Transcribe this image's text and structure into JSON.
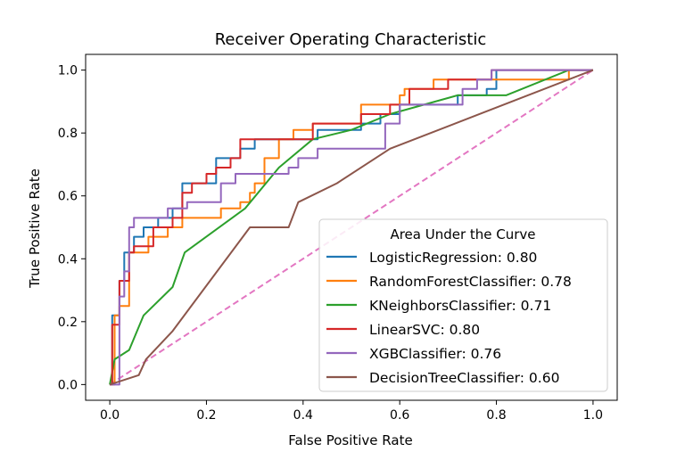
{
  "chart_data": {
    "type": "line",
    "title": "Receiver Operating Characteristic",
    "xlabel": "False Positive Rate",
    "ylabel": "True Positive Rate",
    "xlim": [
      -0.05,
      1.05
    ],
    "ylim": [
      -0.05,
      1.05
    ],
    "xticks": [
      0.0,
      0.2,
      0.4,
      0.6,
      0.8,
      1.0
    ],
    "xtick_labels": [
      "0.0",
      "0.2",
      "0.4",
      "0.6",
      "0.8",
      "1.0"
    ],
    "yticks": [
      0.0,
      0.2,
      0.4,
      0.6,
      0.8,
      1.0
    ],
    "ytick_labels": [
      "0.0",
      "0.2",
      "0.4",
      "0.6",
      "0.8",
      "1.0"
    ],
    "grid": false,
    "legend": {
      "title": "Area Under the Curve",
      "placement": "lower-right"
    },
    "diagonal": {
      "x": [
        0,
        1
      ],
      "y": [
        0,
        1
      ],
      "color": "#e377c2",
      "style": "dashed"
    },
    "series": [
      {
        "name": "LogisticRegression: 0.80",
        "color": "#1f77b4",
        "step": true,
        "x": [
          0,
          0.005,
          0.005,
          0.02,
          0.02,
          0.03,
          0.03,
          0.05,
          0.05,
          0.07,
          0.07,
          0.1,
          0.1,
          0.13,
          0.13,
          0.15,
          0.15,
          0.18,
          0.18,
          0.22,
          0.22,
          0.25,
          0.25,
          0.27,
          0.27,
          0.3,
          0.3,
          0.38,
          0.38,
          0.43,
          0.43,
          0.52,
          0.52,
          0.56,
          0.56,
          0.6,
          0.6,
          0.72,
          0.72,
          0.78,
          0.78,
          0.8,
          0.8,
          1.0
        ],
        "y": [
          0,
          0,
          0.22,
          0.22,
          0.33,
          0.33,
          0.42,
          0.42,
          0.47,
          0.47,
          0.5,
          0.5,
          0.53,
          0.53,
          0.56,
          0.56,
          0.64,
          0.64,
          0.64,
          0.64,
          0.72,
          0.72,
          0.72,
          0.72,
          0.75,
          0.75,
          0.78,
          0.78,
          0.78,
          0.78,
          0.81,
          0.81,
          0.83,
          0.83,
          0.86,
          0.86,
          0.89,
          0.89,
          0.92,
          0.92,
          0.94,
          0.94,
          1.0,
          1.0
        ]
      },
      {
        "name": "RandomForestClassifier: 0.78",
        "color": "#ff7f0e",
        "step": true,
        "x": [
          0,
          0.01,
          0.01,
          0.02,
          0.02,
          0.04,
          0.04,
          0.08,
          0.08,
          0.12,
          0.12,
          0.15,
          0.15,
          0.23,
          0.23,
          0.27,
          0.27,
          0.29,
          0.29,
          0.3,
          0.3,
          0.32,
          0.32,
          0.35,
          0.35,
          0.38,
          0.38,
          0.42,
          0.42,
          0.52,
          0.52,
          0.6,
          0.6,
          0.61,
          0.61,
          0.63,
          0.63,
          0.67,
          0.67,
          0.75,
          0.75,
          0.78,
          0.78,
          0.95,
          0.95,
          1.0
        ],
        "y": [
          0,
          0,
          0.22,
          0.22,
          0.25,
          0.25,
          0.42,
          0.42,
          0.47,
          0.47,
          0.5,
          0.5,
          0.53,
          0.53,
          0.56,
          0.56,
          0.58,
          0.58,
          0.61,
          0.61,
          0.64,
          0.64,
          0.72,
          0.72,
          0.78,
          0.78,
          0.81,
          0.81,
          0.83,
          0.83,
          0.89,
          0.89,
          0.92,
          0.92,
          0.94,
          0.94,
          0.94,
          0.94,
          0.97,
          0.97,
          0.97,
          0.97,
          0.97,
          0.97,
          1.0,
          1.0
        ]
      },
      {
        "name": "KNeighborsClassifier: 0.71",
        "color": "#2ca02c",
        "step": false,
        "x": [
          0,
          0.01,
          0.04,
          0.07,
          0.13,
          0.155,
          0.28,
          0.35,
          0.42,
          0.5,
          0.58,
          0.72,
          0.82,
          0.95,
          1.0
        ],
        "y": [
          0,
          0.08,
          0.11,
          0.22,
          0.31,
          0.42,
          0.56,
          0.69,
          0.78,
          0.81,
          0.86,
          0.92,
          0.92,
          1.0,
          1.0
        ]
      },
      {
        "name": "LinearSVC: 0.80",
        "color": "#d62728",
        "step": true,
        "x": [
          0,
          0.005,
          0.005,
          0.02,
          0.02,
          0.04,
          0.04,
          0.05,
          0.05,
          0.09,
          0.09,
          0.13,
          0.13,
          0.15,
          0.15,
          0.17,
          0.17,
          0.2,
          0.2,
          0.22,
          0.22,
          0.25,
          0.25,
          0.27,
          0.27,
          0.32,
          0.32,
          0.42,
          0.42,
          0.52,
          0.52,
          0.58,
          0.58,
          0.62,
          0.62,
          0.7,
          0.7,
          0.77,
          0.77,
          0.79,
          0.79,
          0.88,
          0.88,
          1.0
        ],
        "y": [
          0,
          0,
          0.19,
          0.19,
          0.33,
          0.33,
          0.42,
          0.42,
          0.44,
          0.44,
          0.5,
          0.5,
          0.53,
          0.53,
          0.61,
          0.61,
          0.64,
          0.64,
          0.67,
          0.67,
          0.69,
          0.69,
          0.72,
          0.72,
          0.78,
          0.78,
          0.78,
          0.78,
          0.83,
          0.83,
          0.86,
          0.86,
          0.89,
          0.89,
          0.94,
          0.94,
          0.97,
          0.97,
          0.97,
          0.97,
          1.0,
          1.0,
          1.0,
          1.0
        ]
      },
      {
        "name": "XGBClassifier: 0.76",
        "color": "#9467bd",
        "step": true,
        "x": [
          0,
          0.02,
          0.02,
          0.03,
          0.03,
          0.04,
          0.04,
          0.05,
          0.05,
          0.12,
          0.12,
          0.16,
          0.16,
          0.23,
          0.23,
          0.26,
          0.26,
          0.35,
          0.35,
          0.37,
          0.37,
          0.39,
          0.39,
          0.43,
          0.43,
          0.57,
          0.57,
          0.6,
          0.6,
          0.73,
          0.73,
          0.76,
          0.76,
          0.79,
          0.79,
          1.0
        ],
        "y": [
          0,
          0,
          0.28,
          0.28,
          0.36,
          0.36,
          0.5,
          0.5,
          0.53,
          0.53,
          0.56,
          0.56,
          0.58,
          0.58,
          0.64,
          0.64,
          0.67,
          0.67,
          0.67,
          0.67,
          0.69,
          0.69,
          0.72,
          0.72,
          0.75,
          0.75,
          0.83,
          0.83,
          0.89,
          0.89,
          0.94,
          0.94,
          0.97,
          0.97,
          1.0,
          1.0
        ]
      },
      {
        "name": "DecisionTreeClassifier: 0.60",
        "color": "#8c564b",
        "step": false,
        "x": [
          0,
          0.06,
          0.075,
          0.13,
          0.29,
          0.37,
          0.39,
          0.47,
          0.58,
          1.0
        ],
        "y": [
          0,
          0.03,
          0.08,
          0.17,
          0.5,
          0.5,
          0.58,
          0.64,
          0.75,
          1.0
        ]
      }
    ]
  }
}
